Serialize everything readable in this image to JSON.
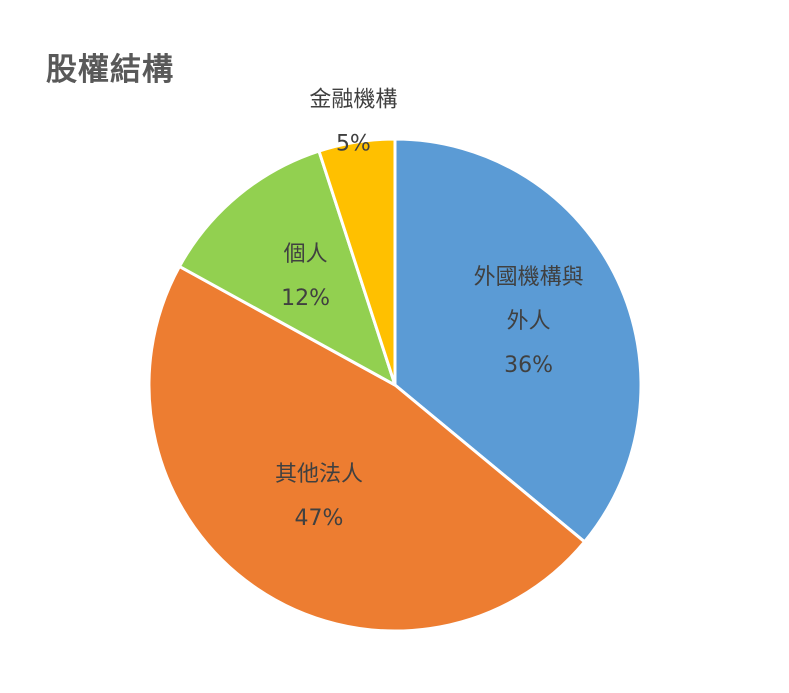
{
  "chart_data": {
    "type": "pie",
    "title": "股權結構",
    "unit": "%",
    "slices": [
      {
        "label": "外國機構與外人",
        "label_lines": [
          "外國機構與",
          "外人"
        ],
        "value": 36,
        "value_label": "36%",
        "color": "#5B9BD5"
      },
      {
        "label": "其他法人",
        "label_lines": [
          "其他法人"
        ],
        "value": 47,
        "value_label": "47%",
        "color": "#ED7D31"
      },
      {
        "label": "個人",
        "label_lines": [
          "個人"
        ],
        "value": 12,
        "value_label": "12%",
        "color": "#92D050"
      },
      {
        "label": "金融機構",
        "label_lines": [
          "金融機構"
        ],
        "value": 5,
        "value_label": "5%",
        "color": "#FFC000"
      }
    ],
    "legend": false
  }
}
